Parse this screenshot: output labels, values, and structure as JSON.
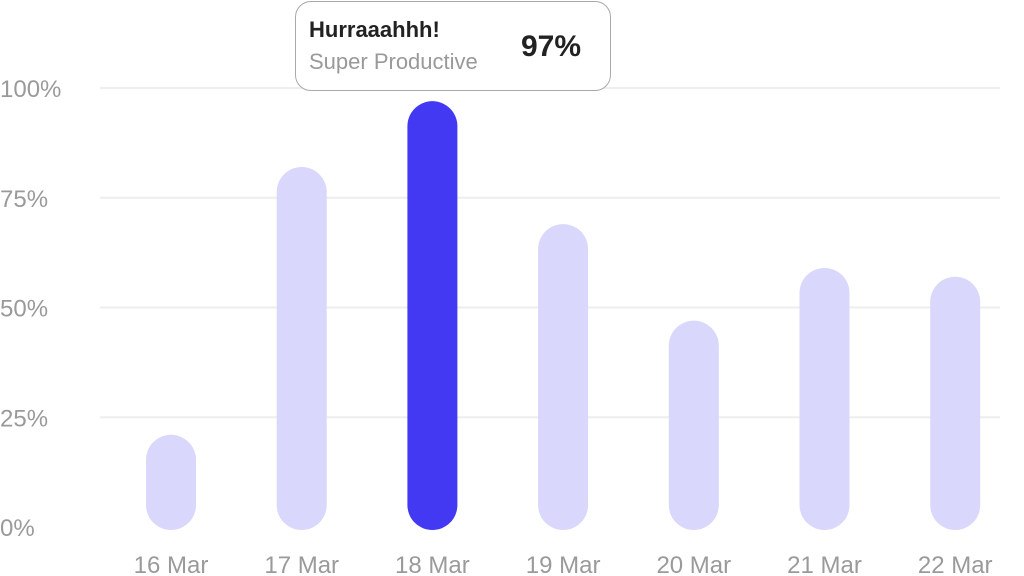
{
  "chart_data": {
    "type": "bar",
    "categories": [
      "16 Mar",
      "17 Mar",
      "18 Mar",
      "19 Mar",
      "20 Mar",
      "21 Mar",
      "22 Mar"
    ],
    "values": [
      21,
      82,
      97,
      69,
      47,
      59,
      57
    ],
    "ylim": [
      0,
      100
    ],
    "yticks": [
      "0%",
      "25%",
      "50%",
      "75%",
      "100%"
    ],
    "grid": true,
    "highlighted_category": "18 Mar",
    "colors": {
      "bar": "#d9d7fc",
      "highlight": "#4339f2",
      "grid": "#eeeeee"
    },
    "tooltip": {
      "title": "Hurraaahhh!",
      "subtitle": "Super Productive",
      "value": "97%"
    }
  }
}
